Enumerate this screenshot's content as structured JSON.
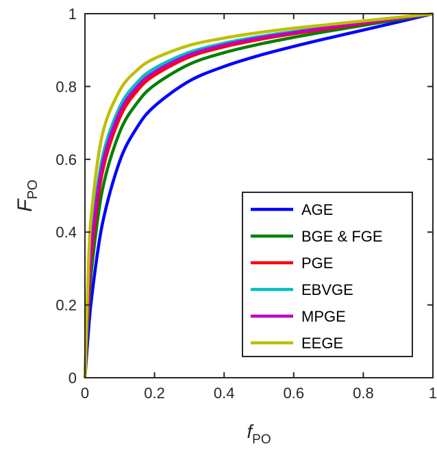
{
  "chart_data": {
    "type": "line",
    "title": "",
    "xlabel": {
      "main": "f",
      "sub": "PO"
    },
    "ylabel": {
      "main": "F",
      "sub": "PO"
    },
    "xlim": [
      0,
      1
    ],
    "ylim": [
      0,
      1
    ],
    "x_ticks": [
      "0",
      "0.2",
      "0.4",
      "0.6",
      "0.8",
      "1"
    ],
    "y_ticks": [
      "0",
      "0.2",
      "0.4",
      "0.6",
      "0.8",
      "1"
    ],
    "grid": false,
    "legend_position": "bottom-right",
    "x": [
      0,
      0.01,
      0.02,
      0.05,
      0.1,
      0.15,
      0.2,
      0.3,
      0.4,
      0.5,
      0.6,
      0.7,
      0.8,
      0.9,
      1.0
    ],
    "series": [
      {
        "name": "AGE",
        "color": "#0000ff",
        "values": [
          0,
          0.127,
          0.226,
          0.422,
          0.595,
          0.688,
          0.746,
          0.815,
          0.855,
          0.885,
          0.91,
          0.933,
          0.955,
          0.977,
          1.0
        ]
      },
      {
        "name": "BGE & FGE",
        "color": "#008000",
        "values": [
          0,
          0.18,
          0.305,
          0.515,
          0.675,
          0.755,
          0.804,
          0.861,
          0.893,
          0.916,
          0.935,
          0.952,
          0.968,
          0.984,
          1.0
        ]
      },
      {
        "name": "PGE",
        "color": "#ff0000",
        "values": [
          0,
          0.214,
          0.351,
          0.564,
          0.714,
          0.788,
          0.831,
          0.881,
          0.909,
          0.929,
          0.945,
          0.959,
          0.973,
          0.987,
          1.0
        ]
      },
      {
        "name": "EBVGE",
        "color": "#00c0c0",
        "values": [
          0,
          0.244,
          0.39,
          0.604,
          0.744,
          0.811,
          0.85,
          0.894,
          0.919,
          0.937,
          0.951,
          0.964,
          0.976,
          0.988,
          1.0
        ]
      },
      {
        "name": "MPGE",
        "color": "#bf00bf",
        "values": [
          0,
          0.23,
          0.371,
          0.584,
          0.729,
          0.799,
          0.84,
          0.887,
          0.914,
          0.933,
          0.948,
          0.962,
          0.975,
          0.987,
          1.0
        ]
      },
      {
        "name": "EEGE",
        "color": "#bfbf00",
        "values": [
          0,
          0.305,
          0.462,
          0.668,
          0.789,
          0.845,
          0.877,
          0.913,
          0.933,
          0.948,
          0.96,
          0.97,
          0.98,
          0.99,
          1.0
        ]
      }
    ]
  }
}
